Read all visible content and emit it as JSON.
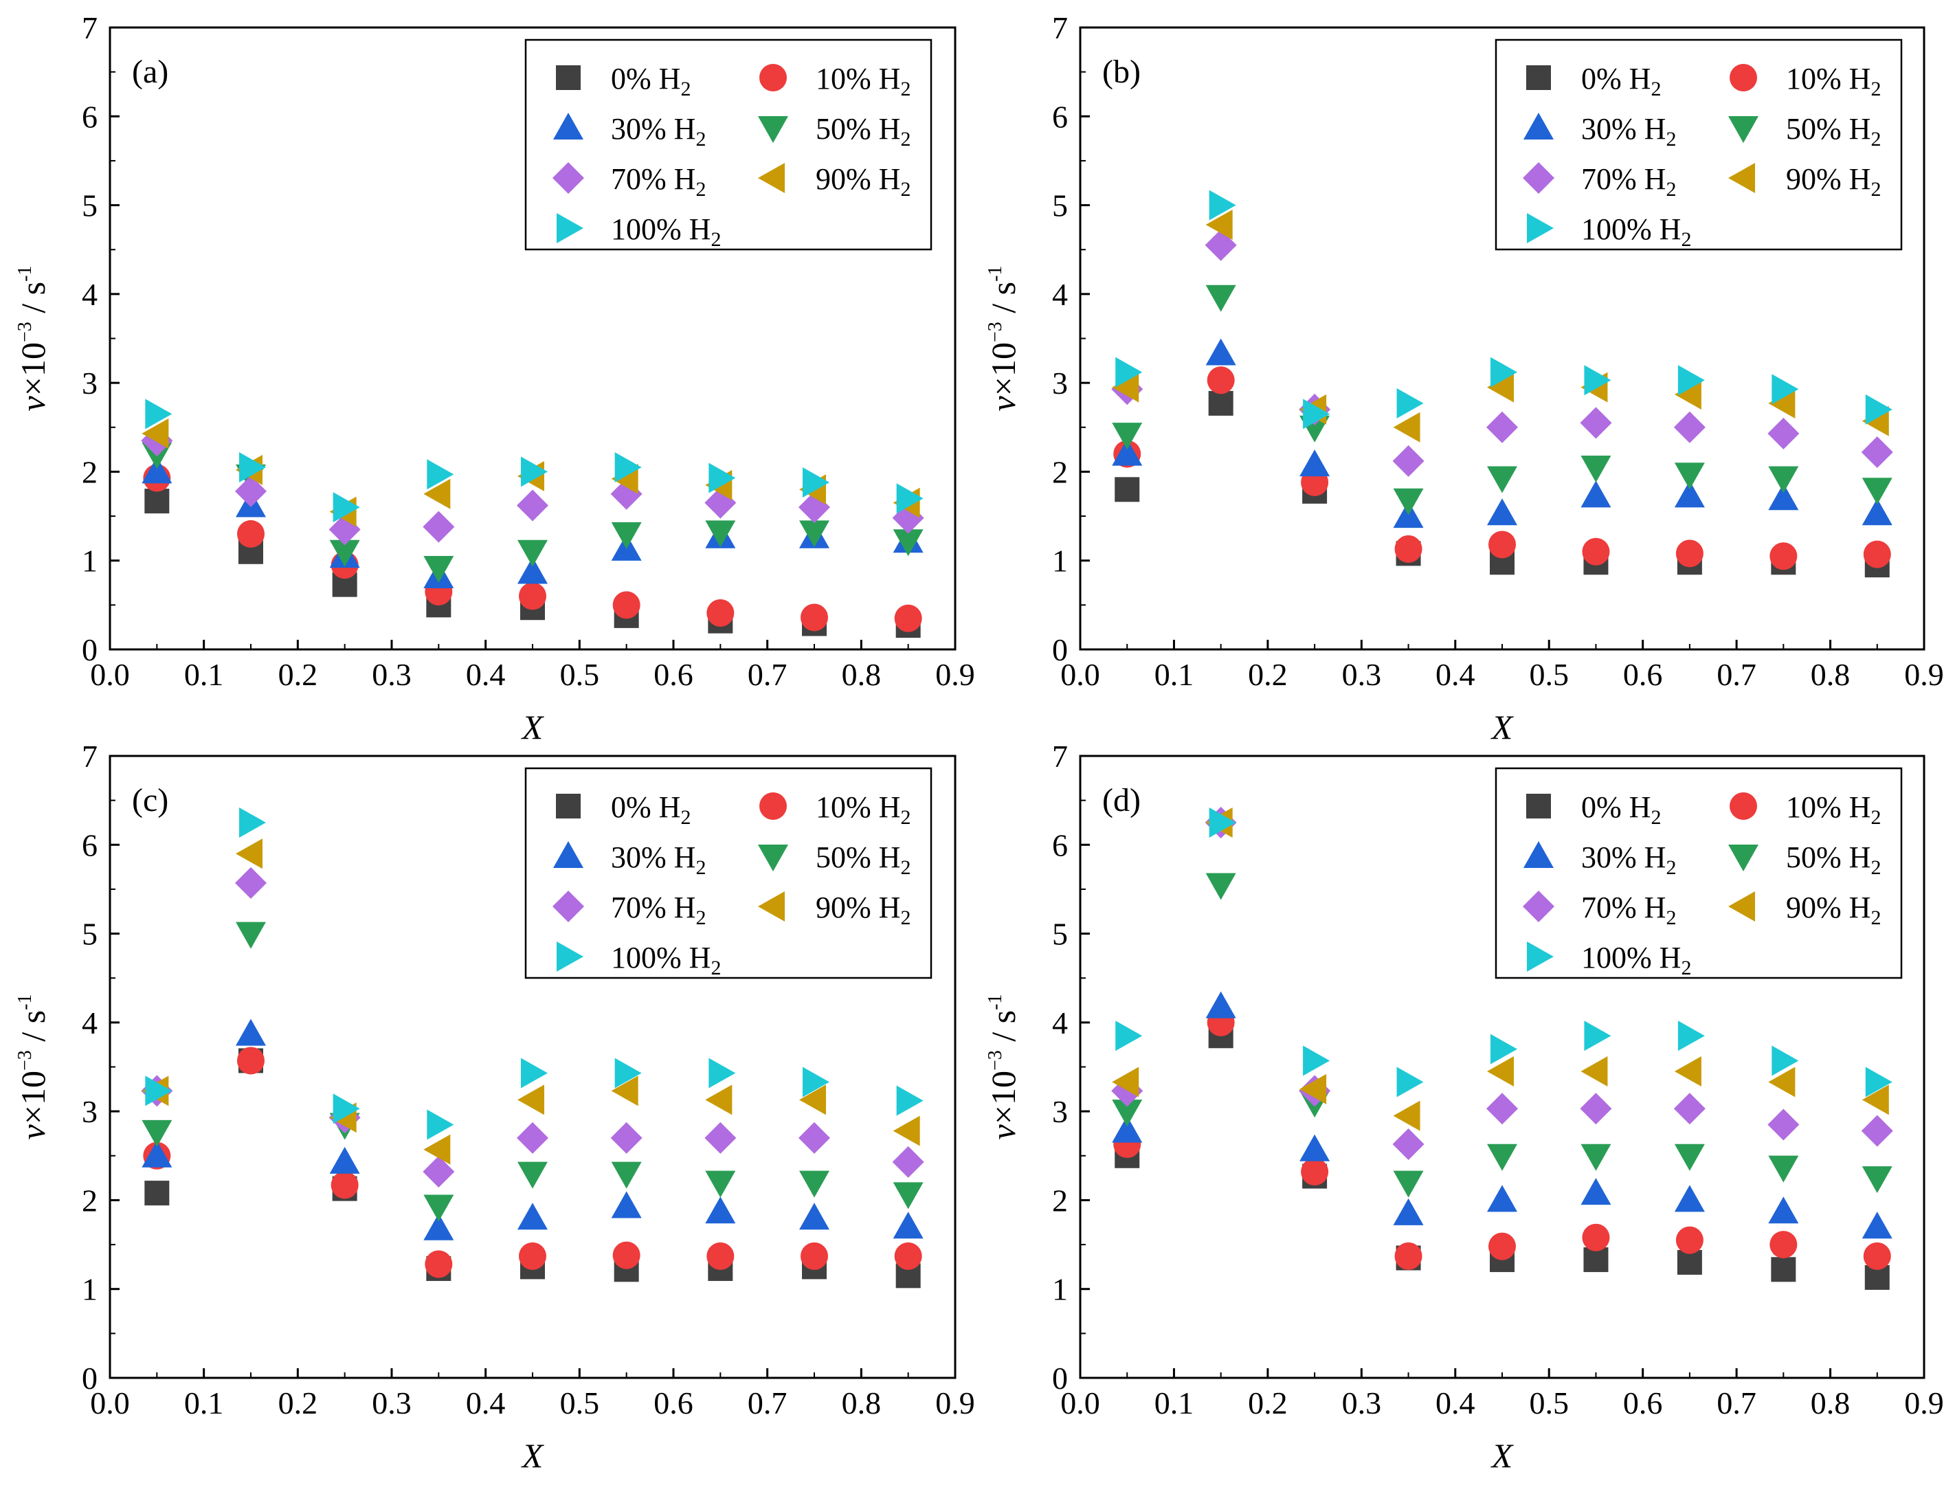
{
  "figure_title": "",
  "chart_data": [
    {
      "panel": "(a)",
      "type": "scatter",
      "xlabel": "X",
      "ylabel_parts": {
        "var": "v",
        "times": "×10",
        "exp": "−3",
        "unit": " / s",
        "unit_exp": "-1"
      },
      "xlim": [
        0.0,
        0.9
      ],
      "ylim": [
        0,
        7
      ],
      "xticks": [
        "0.0",
        "0.1",
        "0.2",
        "0.3",
        "0.4",
        "0.5",
        "0.6",
        "0.7",
        "0.8",
        "0.9"
      ],
      "yticks": [
        "0",
        "1",
        "2",
        "3",
        "4",
        "5",
        "6",
        "7"
      ],
      "x": [
        0.05,
        0.15,
        0.25,
        0.35,
        0.45,
        0.55,
        0.65,
        0.75,
        0.85
      ],
      "series": [
        {
          "name": "0% H2",
          "values": [
            1.67,
            1.1,
            0.73,
            0.5,
            0.47,
            0.38,
            0.32,
            0.29,
            0.27
          ]
        },
        {
          "name": "10% H2",
          "values": [
            1.93,
            1.3,
            0.95,
            0.65,
            0.6,
            0.5,
            0.41,
            0.36,
            0.35
          ]
        },
        {
          "name": "30% H2",
          "values": [
            2.0,
            1.62,
            1.05,
            0.82,
            0.87,
            1.13,
            1.27,
            1.27,
            1.22
          ]
        },
        {
          "name": "50% H2",
          "values": [
            2.2,
            1.95,
            1.1,
            0.92,
            1.1,
            1.3,
            1.32,
            1.32,
            1.22
          ]
        },
        {
          "name": "70% H2",
          "values": [
            2.35,
            1.78,
            1.35,
            1.38,
            1.62,
            1.75,
            1.65,
            1.6,
            1.48
          ]
        },
        {
          "name": "90% H2",
          "values": [
            2.43,
            2.02,
            1.55,
            1.75,
            1.95,
            1.92,
            1.85,
            1.8,
            1.65
          ]
        },
        {
          "name": "100% H2",
          "values": [
            2.65,
            2.05,
            1.6,
            1.97,
            2.0,
            2.05,
            1.93,
            1.88,
            1.7
          ]
        }
      ]
    },
    {
      "panel": "(b)",
      "type": "scatter",
      "xlabel": "X",
      "ylabel_parts": {
        "var": "v",
        "times": "×10",
        "exp": "−3",
        "unit": " / s",
        "unit_exp": "-1"
      },
      "xlim": [
        0.0,
        0.9
      ],
      "ylim": [
        0,
        7
      ],
      "xticks": [
        "0.0",
        "0.1",
        "0.2",
        "0.3",
        "0.4",
        "0.5",
        "0.6",
        "0.7",
        "0.8",
        "0.9"
      ],
      "yticks": [
        "0",
        "1",
        "2",
        "3",
        "4",
        "5",
        "6",
        "7"
      ],
      "x": [
        0.05,
        0.15,
        0.25,
        0.35,
        0.45,
        0.55,
        0.65,
        0.75,
        0.85
      ],
      "series": [
        {
          "name": "0% H2",
          "values": [
            1.8,
            2.77,
            1.78,
            1.08,
            0.98,
            0.98,
            0.98,
            0.98,
            0.95
          ]
        },
        {
          "name": "10% H2",
          "values": [
            2.2,
            3.03,
            1.88,
            1.13,
            1.18,
            1.1,
            1.08,
            1.05,
            1.07
          ]
        },
        {
          "name": "30% H2",
          "values": [
            2.2,
            3.33,
            2.08,
            1.5,
            1.53,
            1.73,
            1.73,
            1.7,
            1.53
          ]
        },
        {
          "name": "50% H2",
          "values": [
            2.42,
            3.97,
            2.5,
            1.68,
            1.93,
            2.05,
            1.97,
            1.93,
            1.8
          ]
        },
        {
          "name": "70% H2",
          "values": [
            2.93,
            4.55,
            2.7,
            2.12,
            2.5,
            2.55,
            2.5,
            2.43,
            2.22
          ]
        },
        {
          "name": "90% H2",
          "values": [
            2.95,
            4.78,
            2.7,
            2.5,
            2.95,
            2.95,
            2.87,
            2.77,
            2.57
          ]
        },
        {
          "name": "100% H2",
          "values": [
            3.12,
            5.0,
            2.65,
            2.77,
            3.12,
            3.03,
            3.03,
            2.93,
            2.7
          ]
        }
      ]
    },
    {
      "panel": "(c)",
      "type": "scatter",
      "xlabel": "X",
      "ylabel_parts": {
        "var": "v",
        "times": "×10",
        "exp": "−3",
        "unit": " / s",
        "unit_exp": "-1"
      },
      "xlim": [
        0.0,
        0.9
      ],
      "ylim": [
        0,
        7
      ],
      "xticks": [
        "0.0",
        "0.1",
        "0.2",
        "0.3",
        "0.4",
        "0.5",
        "0.6",
        "0.7",
        "0.8",
        "0.9"
      ],
      "yticks": [
        "0",
        "1",
        "2",
        "3",
        "4",
        "5",
        "6",
        "7"
      ],
      "x": [
        0.05,
        0.15,
        0.25,
        0.35,
        0.45,
        0.55,
        0.65,
        0.75,
        0.85
      ],
      "series": [
        {
          "name": "0% H2",
          "values": [
            2.08,
            3.57,
            2.13,
            1.23,
            1.25,
            1.22,
            1.23,
            1.25,
            1.15
          ]
        },
        {
          "name": "10% H2",
          "values": [
            2.5,
            3.57,
            2.17,
            1.28,
            1.37,
            1.38,
            1.37,
            1.37,
            1.37
          ]
        },
        {
          "name": "30% H2",
          "values": [
            2.5,
            3.87,
            2.43,
            1.68,
            1.8,
            1.93,
            1.87,
            1.8,
            1.7
          ]
        },
        {
          "name": "50% H2",
          "values": [
            2.77,
            5.0,
            2.85,
            1.93,
            2.3,
            2.3,
            2.2,
            2.2,
            2.07
          ]
        },
        {
          "name": "70% H2",
          "values": [
            3.23,
            5.57,
            2.93,
            2.32,
            2.7,
            2.7,
            2.7,
            2.7,
            2.43
          ]
        },
        {
          "name": "90% H2",
          "values": [
            3.23,
            5.9,
            2.93,
            2.57,
            3.13,
            3.23,
            3.13,
            3.13,
            2.78
          ]
        },
        {
          "name": "100% H2",
          "values": [
            3.23,
            6.25,
            3.03,
            2.85,
            3.43,
            3.43,
            3.43,
            3.33,
            3.12
          ]
        }
      ]
    },
    {
      "panel": "(d)",
      "type": "scatter",
      "xlabel": "X",
      "ylabel_parts": {
        "var": "v",
        "times": "×10",
        "exp": "−3",
        "unit": " / s",
        "unit_exp": "-1"
      },
      "xlim": [
        0.0,
        0.9
      ],
      "ylim": [
        0,
        7
      ],
      "xticks": [
        "0.0",
        "0.1",
        "0.2",
        "0.3",
        "0.4",
        "0.5",
        "0.6",
        "0.7",
        "0.8",
        "0.9"
      ],
      "yticks": [
        "0",
        "1",
        "2",
        "3",
        "4",
        "5",
        "6",
        "7"
      ],
      "x": [
        0.05,
        0.15,
        0.25,
        0.35,
        0.45,
        0.55,
        0.65,
        0.75,
        0.85
      ],
      "series": [
        {
          "name": "0% H2",
          "values": [
            2.5,
            3.85,
            2.27,
            1.35,
            1.33,
            1.33,
            1.3,
            1.22,
            1.13
          ]
        },
        {
          "name": "10% H2",
          "values": [
            2.63,
            4.0,
            2.32,
            1.37,
            1.48,
            1.58,
            1.55,
            1.5,
            1.37
          ]
        },
        {
          "name": "30% H2",
          "values": [
            2.78,
            4.18,
            2.57,
            1.85,
            2.0,
            2.08,
            2.0,
            1.87,
            1.7
          ]
        },
        {
          "name": "50% H2",
          "values": [
            3.0,
            5.55,
            3.1,
            2.2,
            2.5,
            2.5,
            2.5,
            2.37,
            2.25
          ]
        },
        {
          "name": "70% H2",
          "values": [
            3.23,
            6.25,
            3.23,
            2.63,
            3.03,
            3.03,
            3.03,
            2.85,
            2.78
          ]
        },
        {
          "name": "90% H2",
          "values": [
            3.33,
            6.25,
            3.25,
            2.95,
            3.45,
            3.45,
            3.45,
            3.33,
            3.13
          ]
        },
        {
          "name": "100% H2",
          "values": [
            3.85,
            6.25,
            3.57,
            3.33,
            3.7,
            3.85,
            3.85,
            3.57,
            3.33
          ]
        }
      ]
    }
  ],
  "legend": [
    {
      "label": "0% H",
      "sub": "2",
      "marker": "square",
      "color": "#404040"
    },
    {
      "label": "10% H",
      "sub": "2",
      "marker": "circle",
      "color": "#ee3b3b"
    },
    {
      "label": "30% H",
      "sub": "2",
      "marker": "triangle-up",
      "color": "#1f63d6"
    },
    {
      "label": "50% H",
      "sub": "2",
      "marker": "triangle-down",
      "color": "#2a9d55"
    },
    {
      "label": "70% H",
      "sub": "2",
      "marker": "diamond",
      "color": "#b06ce0"
    },
    {
      "label": "90% H",
      "sub": "2",
      "marker": "triangle-left",
      "color": "#c99a06"
    },
    {
      "label": "100% H",
      "sub": "2",
      "marker": "triangle-right",
      "color": "#1ec9d6"
    }
  ]
}
